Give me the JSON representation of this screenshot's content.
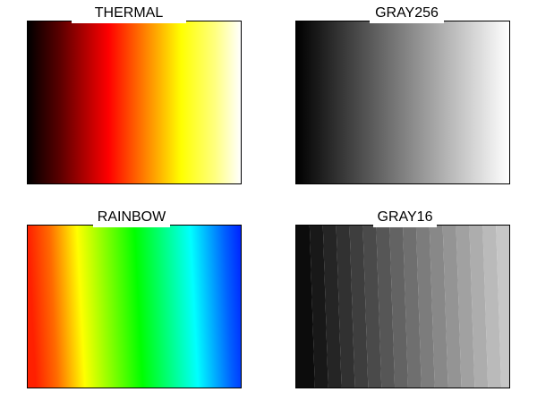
{
  "panels": {
    "thermal": {
      "title": "THERMAL",
      "colors": [
        "#000000",
        "#5a0000",
        "#ff0000",
        "#ff8000",
        "#ffff00",
        "#ffff80",
        "#ffffff"
      ]
    },
    "gray256": {
      "title": "GRAY256",
      "colors": [
        "#000000",
        "#ffffff"
      ]
    },
    "rainbow": {
      "title": "RAINBOW",
      "colors": [
        "#ff2000",
        "#ff6a00",
        "#ffff00",
        "#00ff00",
        "#00ffff",
        "#0040ff",
        "#0020ff"
      ]
    },
    "gray16": {
      "title": "GRAY16",
      "colors": [
        "#000000",
        "#111111",
        "#222222",
        "#333333",
        "#444444",
        "#555555",
        "#666666",
        "#777777",
        "#888888",
        "#999999",
        "#aaaaaa",
        "#bbbbbb",
        "#cccccc",
        "#dddddd",
        "#eeeeee",
        "#ffffff"
      ]
    }
  }
}
